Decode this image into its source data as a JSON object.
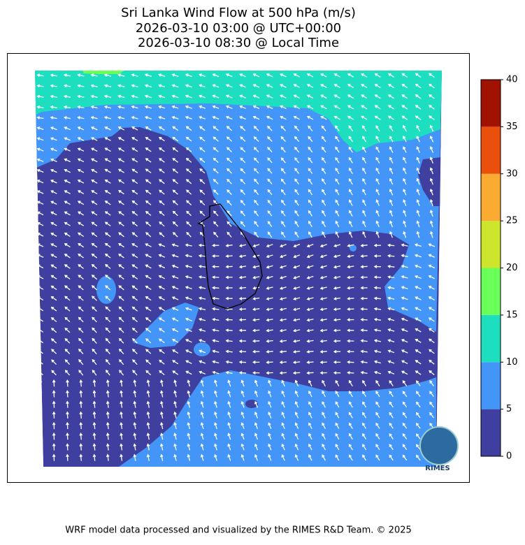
{
  "title": [
    "Sri Lanka Wind Flow at 500 hPa (m/s)",
    "2026-03-10 03:00 @ UTC+00:00",
    "2026-03-10 08:30 @ Local Time"
  ],
  "colorbar": {
    "lim": [
      0,
      40
    ],
    "ticks": [
      0,
      5,
      10,
      15,
      20,
      25,
      30,
      35,
      40
    ],
    "colors": [
      "#3e3f9e",
      "#4396f7",
      "#1ddfc0",
      "#6bff5a",
      "#cde52b",
      "#fbaa32",
      "#ea4f0c",
      "#a01202"
    ]
  },
  "logo": "RIMES",
  "footer": "WRF model data processed and visualized by the RIMES R&D Team. © 2025"
}
